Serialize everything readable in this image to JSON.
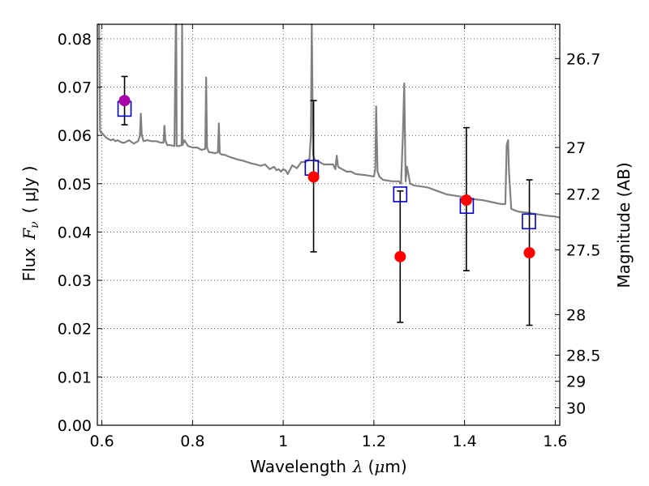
{
  "chart_data": {
    "type": "scatter",
    "xlabel": {
      "prefix": "Wavelength",
      "symbol": "λ",
      "unit_open": "(",
      "unit_mu": "μ",
      "unit_rest": "m)"
    },
    "ylabel": {
      "prefix": "Flux",
      "symbol": "F",
      "sub": "ν",
      "unit": "( μJy )"
    },
    "y2label": "Magnitude (AB)",
    "xlim": [
      0.59,
      1.61
    ],
    "ylim": [
      0.0,
      0.083
    ],
    "grid": true,
    "x_ticks": [
      "0.6",
      "0.8",
      "1",
      "1.2",
      "1.4",
      "1.6"
    ],
    "x_tick_values": [
      0.6,
      0.8,
      1.0,
      1.2,
      1.4,
      1.6
    ],
    "y_ticks": [
      "0.00",
      "0.01",
      "0.02",
      "0.03",
      "0.04",
      "0.05",
      "0.06",
      "0.07",
      "0.08"
    ],
    "y_tick_values": [
      0.0,
      0.01,
      0.02,
      0.03,
      0.04,
      0.05,
      0.06,
      0.07,
      0.08
    ],
    "mag_ticks": [
      {
        "label": "26.7",
        "flux": 0.0759
      },
      {
        "label": "27",
        "flux": 0.0575
      },
      {
        "label": "27.2",
        "flux": 0.0479
      },
      {
        "label": "27.5",
        "flux": 0.0363
      },
      {
        "label": "28",
        "flux": 0.0229
      },
      {
        "label": "28.5",
        "flux": 0.0145
      },
      {
        "label": "29",
        "flux": 0.0091
      },
      {
        "label": "30",
        "flux": 0.0036
      }
    ],
    "series": [
      {
        "kind": "model_spectrum",
        "color": "#808080",
        "x": [
          0.592,
          0.594,
          0.596,
          0.598,
          0.6,
          0.605,
          0.61,
          0.615,
          0.62,
          0.625,
          0.63,
          0.635,
          0.64,
          0.645,
          0.65,
          0.66,
          0.67,
          0.68,
          0.684,
          0.686,
          0.688,
          0.692,
          0.7,
          0.71,
          0.72,
          0.73,
          0.736,
          0.738,
          0.74,
          0.744,
          0.75,
          0.76,
          0.763,
          0.764,
          0.765,
          0.77,
          0.776,
          0.777,
          0.778,
          0.782,
          0.79,
          0.8,
          0.81,
          0.82,
          0.828,
          0.83,
          0.832,
          0.836,
          0.84,
          0.85,
          0.856,
          0.858,
          0.86,
          0.865,
          0.87,
          0.88,
          0.89,
          0.9,
          0.91,
          0.92,
          0.93,
          0.94,
          0.95,
          0.96,
          0.97,
          0.98,
          0.985,
          0.99,
          0.995,
          1.0,
          1.005,
          1.01,
          1.02,
          1.03,
          1.04,
          1.05,
          1.058,
          1.061,
          1.063,
          1.066,
          1.07,
          1.08,
          1.09,
          1.1,
          1.11,
          1.115,
          1.118,
          1.121,
          1.13,
          1.14,
          1.15,
          1.16,
          1.18,
          1.2,
          1.203,
          1.205,
          1.208,
          1.212,
          1.22,
          1.24,
          1.255,
          1.26,
          1.264,
          1.267,
          1.27,
          1.273,
          1.28,
          1.29,
          1.3,
          1.32,
          1.34,
          1.36,
          1.38,
          1.4,
          1.42,
          1.44,
          1.46,
          1.48,
          1.49,
          1.493,
          1.496,
          1.498,
          1.503,
          1.51,
          1.52,
          1.54,
          1.56,
          1.58,
          1.6,
          1.61
        ],
        "y": [
          0.085,
          0.085,
          0.061,
          0.0605,
          0.0605,
          0.06,
          0.0595,
          0.0592,
          0.059,
          0.0592,
          0.0588,
          0.059,
          0.0587,
          0.0585,
          0.0585,
          0.059,
          0.0583,
          0.0588,
          0.06,
          0.0645,
          0.06,
          0.0588,
          0.059,
          0.0588,
          0.0588,
          0.0585,
          0.0585,
          0.062,
          0.059,
          0.058,
          0.058,
          0.0578,
          0.085,
          0.085,
          0.0578,
          0.0578,
          0.058,
          0.085,
          0.058,
          0.059,
          0.0578,
          0.0575,
          0.0575,
          0.057,
          0.0572,
          0.072,
          0.0575,
          0.0565,
          0.0565,
          0.0563,
          0.0565,
          0.0625,
          0.0563,
          0.056,
          0.056,
          0.0556,
          0.0553,
          0.055,
          0.0548,
          0.0545,
          0.0542,
          0.054,
          0.0537,
          0.054,
          0.053,
          0.0535,
          0.0528,
          0.053,
          0.0525,
          0.053,
          0.0528,
          0.052,
          0.0538,
          0.0532,
          0.0545,
          0.0545,
          0.0552,
          0.06,
          0.085,
          0.056,
          0.0548,
          0.0545,
          0.054,
          0.054,
          0.054,
          0.053,
          0.0558,
          0.0535,
          0.053,
          0.0525,
          0.0525,
          0.052,
          0.0518,
          0.0515,
          0.053,
          0.066,
          0.0525,
          0.0515,
          0.0508,
          0.0505,
          0.0505,
          0.05,
          0.06,
          0.0708,
          0.0505,
          0.0535,
          0.05,
          0.0496,
          0.0495,
          0.0492,
          0.0485,
          0.0478,
          0.0475,
          0.0472,
          0.0468,
          0.0466,
          0.0462,
          0.0458,
          0.0458,
          0.058,
          0.059,
          0.0525,
          0.0448,
          0.0445,
          0.0442,
          0.044,
          0.0437,
          0.0434,
          0.0432,
          0.043
        ]
      },
      {
        "kind": "model_synthetic_photometry",
        "marker": "open_square",
        "color": "#0000cc",
        "x": [
          0.65,
          1.063,
          1.258,
          1.405,
          1.542
        ],
        "y": [
          0.0655,
          0.0533,
          0.0478,
          0.0454,
          0.0422
        ]
      },
      {
        "kind": "observed_photometry",
        "marker": "filled_circle",
        "colors": [
          "#aa00aa",
          "#ff0000",
          "#ff0000",
          "#ff0000",
          "#ff0000"
        ],
        "x": [
          0.65,
          1.067,
          1.258,
          1.404,
          1.543
        ],
        "y": [
          0.0672,
          0.0514,
          0.0349,
          0.0466,
          0.0357
        ],
        "err_low": [
          0.0622,
          0.0359,
          0.0213,
          0.032,
          0.0207
        ],
        "err_high": [
          0.0722,
          0.0672,
          0.0485,
          0.0616,
          0.0508
        ]
      }
    ]
  }
}
